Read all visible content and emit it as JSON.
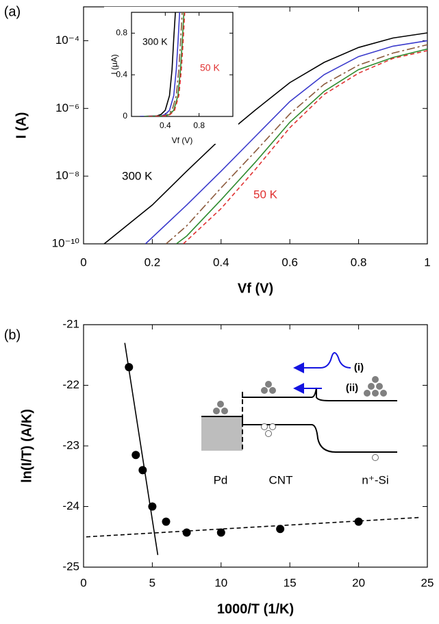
{
  "chart_data": [
    {
      "type": "line",
      "panel_label": "(a)",
      "x_label": "Vf (V)",
      "y_label": "I (A)",
      "log_y": true,
      "xlim": [
        0,
        1
      ],
      "xticks": [
        0,
        0.2,
        0.4,
        0.6,
        0.8,
        1
      ],
      "ylim": [
        1e-10,
        0.001
      ],
      "yticks": [
        {
          "value": 1e-10,
          "label": "10⁻¹⁰"
        },
        {
          "value": 1e-08,
          "label": "10⁻⁸"
        },
        {
          "value": 1e-06,
          "label": "10⁻⁶"
        },
        {
          "value": 0.0001,
          "label": "10⁻⁴"
        }
      ],
      "annotations": [
        {
          "text": "300 K",
          "color": "#000000"
        },
        {
          "text": "50 K",
          "color": "#e03030"
        }
      ],
      "series": [
        {
          "color": "#000000",
          "dash": "solid",
          "x": [
            0.06,
            0.2,
            0.3,
            0.4,
            0.5,
            0.6,
            0.7,
            0.8,
            0.9,
            1.0
          ],
          "values": [
            1e-10,
            1.4e-09,
            1.4e-08,
            1.3e-07,
            9e-07,
            5.8e-06,
            2.3e-05,
            6.3e-05,
            0.00012,
            0.00017
          ]
        },
        {
          "color": "#3a3acc",
          "dash": "solid",
          "x": [
            0.18,
            0.3,
            0.4,
            0.5,
            0.6,
            0.7,
            0.8,
            0.9,
            1.0
          ],
          "values": [
            1e-10,
            1.4e-09,
            1.4e-08,
            1.5e-07,
            1.6e-06,
            1e-05,
            3.4e-05,
            6.9e-05,
            0.0001
          ]
        },
        {
          "color": "#8b5a3c",
          "dash": "dash-dot",
          "x": [
            0.24,
            0.3,
            0.4,
            0.5,
            0.6,
            0.7,
            0.8,
            0.9,
            1.0
          ],
          "values": [
            1e-10,
            3.4e-10,
            4.5e-09,
            5.4e-08,
            6.9e-07,
            5.2e-06,
            1.9e-05,
            4.3e-05,
            7.6e-05
          ]
        },
        {
          "color": "#2e8b2e",
          "dash": "solid",
          "x": [
            0.27,
            0.3,
            0.4,
            0.5,
            0.6,
            0.7,
            0.8,
            0.9,
            1.0
          ],
          "values": [
            1e-10,
            1.7e-10,
            2e-09,
            2.6e-08,
            3.9e-07,
            3.2e-06,
            1.4e-05,
            3.2e-05,
            5.7e-05
          ]
        },
        {
          "color": "#e03030",
          "dash": "dashed",
          "x": [
            0.29,
            0.4,
            0.5,
            0.6,
            0.7,
            0.8,
            0.9,
            1.0
          ],
          "values": [
            1e-10,
            1.1e-09,
            1.6e-08,
            2.7e-07,
            2.6e-06,
            1.1e-05,
            3e-05,
            5.1e-05
          ]
        }
      ]
    },
    {
      "type": "line",
      "x_label": "Vf (V)",
      "y_label": "I (μA)",
      "xlim": [
        0,
        1.2
      ],
      "xticks": [
        0.4,
        0.8
      ],
      "ylim": [
        0,
        1
      ],
      "yticks": [
        0,
        0.4,
        0.8
      ],
      "annotations": [
        {
          "text": "300 K",
          "color": "#000000"
        },
        {
          "text": "50 K",
          "color": "#e03030"
        }
      ],
      "series": [
        {
          "color": "#000000",
          "dash": "solid",
          "x": [
            0.1,
            0.3,
            0.35,
            0.4,
            0.45,
            0.48,
            0.5,
            0.52
          ],
          "values": [
            0,
            0.005,
            0.02,
            0.06,
            0.2,
            0.45,
            0.75,
            1.0
          ]
        },
        {
          "color": "#3a3acc",
          "dash": "solid",
          "x": [
            0.1,
            0.35,
            0.4,
            0.45,
            0.5,
            0.53,
            0.55,
            0.57
          ],
          "values": [
            0,
            0.005,
            0.02,
            0.06,
            0.2,
            0.45,
            0.7,
            1.0
          ]
        },
        {
          "color": "#8b5a3c",
          "dash": "dash-dot",
          "x": [
            0.15,
            0.38,
            0.43,
            0.48,
            0.53,
            0.56,
            0.58,
            0.6
          ],
          "values": [
            0,
            0.005,
            0.02,
            0.06,
            0.2,
            0.45,
            0.7,
            1.0
          ]
        },
        {
          "color": "#2e8b2e",
          "dash": "solid",
          "x": [
            0.15,
            0.4,
            0.45,
            0.5,
            0.55,
            0.58,
            0.6,
            0.62
          ],
          "values": [
            0,
            0.005,
            0.02,
            0.06,
            0.2,
            0.45,
            0.7,
            1.0
          ]
        },
        {
          "color": "#e03030",
          "dash": "dashed",
          "x": [
            0.2,
            0.41,
            0.46,
            0.51,
            0.56,
            0.59,
            0.61,
            0.63
          ],
          "values": [
            0,
            0.005,
            0.02,
            0.06,
            0.2,
            0.45,
            0.7,
            1.0
          ]
        }
      ]
    },
    {
      "type": "scatter",
      "panel_label": "(b)",
      "x_label": "1000/T (1/K)",
      "y_label": "ln(I/T) (A/K)",
      "xlim": [
        0,
        25
      ],
      "xticks": [
        0,
        5,
        10,
        15,
        20,
        25
      ],
      "ylim": [
        -25,
        -21
      ],
      "yticks": [
        -21,
        -22,
        -23,
        -24,
        -25
      ],
      "color": "#000000",
      "x": [
        3.3,
        3.8,
        4.3,
        5.0,
        6.0,
        7.5,
        10,
        14.3,
        20
      ],
      "values": [
        -21.7,
        -23.15,
        -23.4,
        -24.0,
        -24.25,
        -24.43,
        -24.43,
        -24.37,
        -24.25
      ],
      "fit_lines": [
        {
          "dash": "solid",
          "x": [
            3.0,
            5.4
          ],
          "values": [
            -21.3,
            -24.8
          ]
        },
        {
          "dash": "dashed",
          "x": [
            0.2,
            24.5
          ],
          "values": [
            -24.5,
            -24.18
          ]
        }
      ],
      "annotations": [
        {
          "text": "(i)"
        },
        {
          "text": "(ii)"
        },
        {
          "text": "Pd"
        },
        {
          "text": "CNT"
        },
        {
          "text": "n⁺-Si"
        }
      ]
    }
  ]
}
